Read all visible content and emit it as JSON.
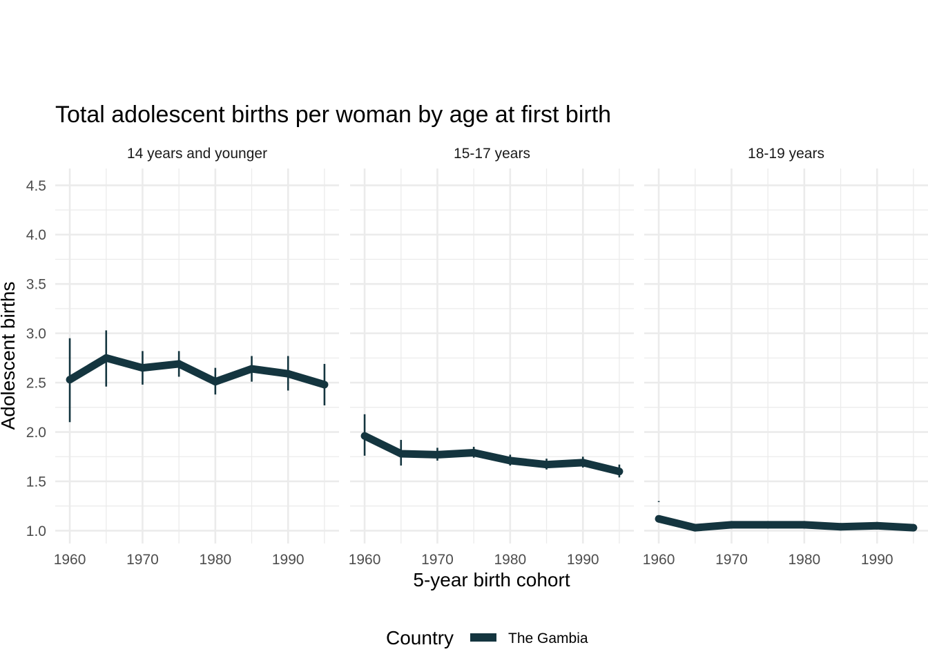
{
  "chart_data": {
    "type": "line",
    "title": "Total adolescent births per woman by age at first birth",
    "xlabel": "5-year birth cohort",
    "ylabel": "Adolescent births",
    "x": [
      1960,
      1965,
      1970,
      1975,
      1980,
      1985,
      1990,
      1995
    ],
    "xlim": [
      1958,
      1997
    ],
    "xticks": [
      1960,
      1970,
      1980,
      1990
    ],
    "ylim": [
      0.87,
      4.67
    ],
    "yticks": [
      1.0,
      1.5,
      2.0,
      2.5,
      3.0,
      3.5,
      4.0,
      4.5
    ],
    "ytick_labels": [
      "1.0",
      "1.5",
      "2.0",
      "2.5",
      "3.0",
      "3.5",
      "4.0",
      "4.5"
    ],
    "grid": true,
    "legend": {
      "title": "Country",
      "placement": "bottom"
    },
    "color": "#14353f",
    "panels": [
      {
        "label": "14 years and younger",
        "series": [
          {
            "name": "The Gambia",
            "values": [
              2.53,
              2.75,
              2.65,
              2.69,
              2.51,
              2.64,
              2.59,
              2.48
            ],
            "lower": [
              2.1,
              2.46,
              2.48,
              2.56,
              2.38,
              2.51,
              2.42,
              2.27
            ],
            "upper": [
              2.95,
              3.03,
              2.82,
              2.82,
              2.65,
              2.77,
              2.77,
              2.69
            ]
          }
        ]
      },
      {
        "label": "15-17 years",
        "series": [
          {
            "name": "The Gambia",
            "values": [
              1.96,
              1.78,
              1.77,
              1.79,
              1.71,
              1.67,
              1.69,
              1.6
            ],
            "lower": [
              1.76,
              1.66,
              1.71,
              1.74,
              1.66,
              1.62,
              1.64,
              1.54
            ],
            "upper": [
              2.18,
              1.92,
              1.84,
              1.85,
              1.77,
              1.73,
              1.75,
              1.67
            ]
          }
        ]
      },
      {
        "label": "18-19 years",
        "series": [
          {
            "name": "The Gambia",
            "values": [
              1.12,
              1.03,
              1.06,
              1.06,
              1.06,
              1.04,
              1.05,
              1.03
            ],
            "lower": [
              1.29,
              1.02,
              1.05,
              1.05,
              1.05,
              1.03,
              1.04,
              1.01
            ],
            "upper": [
              1.3,
              1.05,
              1.08,
              1.07,
              1.07,
              1.06,
              1.06,
              1.06
            ]
          }
        ]
      }
    ]
  }
}
